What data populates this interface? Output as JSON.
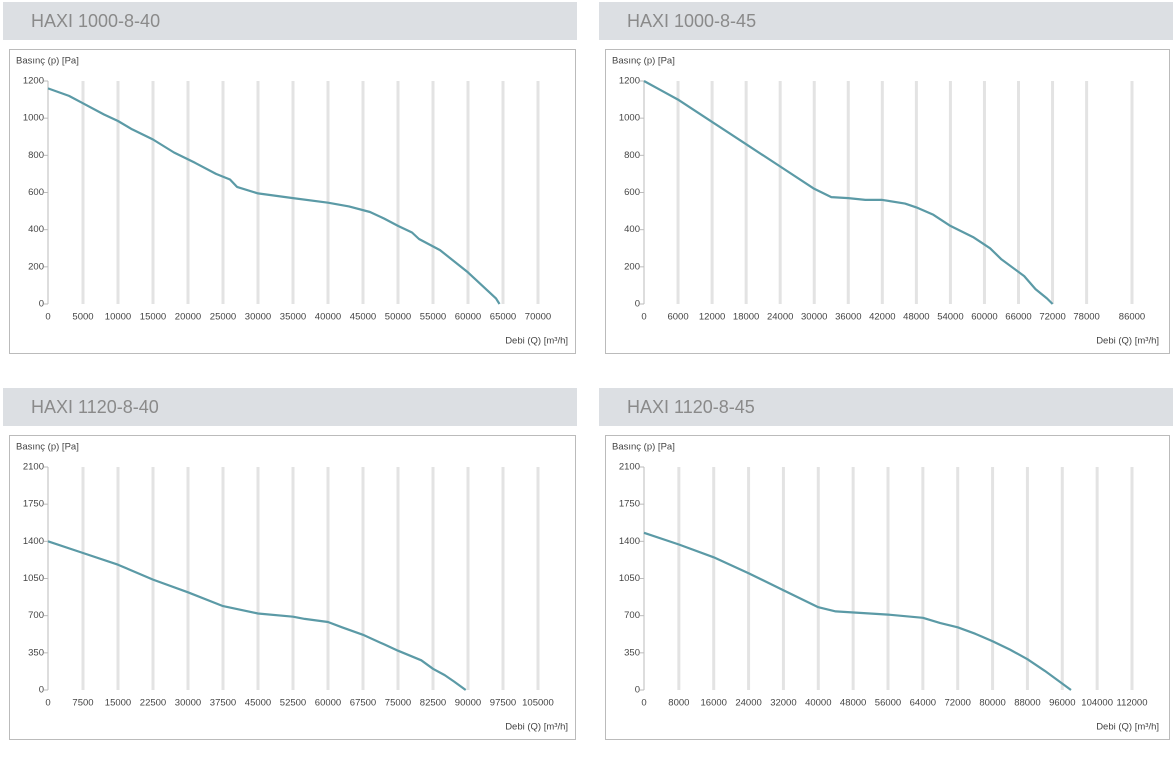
{
  "chart_data": [
    {
      "type": "line",
      "title": "HAXI 1000-8-40",
      "y_label": "Basınç (p) [Pa]",
      "x_label": "Debi (Q) [m³/h]",
      "color": "#5b9aa6",
      "x": [
        0,
        3000,
        5000,
        8000,
        10000,
        12000,
        15000,
        18000,
        21000,
        24000,
        26000,
        27000,
        30000,
        35000,
        40000,
        43000,
        46000,
        48000,
        50000,
        52000,
        53000,
        56000,
        60000,
        62000,
        64000,
        64500
      ],
      "values": [
        1160,
        1120,
        1080,
        1020,
        985,
        940,
        885,
        815,
        760,
        700,
        670,
        630,
        595,
        570,
        545,
        525,
        495,
        460,
        420,
        385,
        350,
        290,
        170,
        100,
        30,
        0
      ],
      "xlim": [
        0,
        70000
      ],
      "ylim": [
        0,
        1200
      ],
      "xticks": [
        0,
        5000,
        10000,
        15000,
        20000,
        25000,
        30000,
        35000,
        40000,
        45000,
        50000,
        55000,
        60000,
        65000,
        70000
      ],
      "yticks": [
        0,
        200,
        400,
        600,
        800,
        1000,
        1200
      ],
      "grid": true
    },
    {
      "type": "line",
      "title": "HAXI 1000-8-45",
      "y_label": "Basınç (p) [Pa]",
      "x_label": "Debi (Q) [m³/h]",
      "color": "#5b9aa6",
      "x": [
        0,
        3000,
        6000,
        12000,
        18000,
        24000,
        30000,
        33000,
        36000,
        39000,
        42000,
        46000,
        48000,
        51000,
        54000,
        58000,
        61000,
        63000,
        67000,
        69000,
        71000,
        72000
      ],
      "values": [
        1200,
        1150,
        1100,
        980,
        860,
        740,
        620,
        575,
        570,
        560,
        560,
        540,
        520,
        480,
        420,
        360,
        300,
        240,
        150,
        80,
        30,
        0
      ],
      "xlim": [
        0,
        86000
      ],
      "ylim": [
        0,
        1200
      ],
      "xticks": [
        0,
        6000,
        12000,
        18000,
        24000,
        30000,
        36000,
        42000,
        48000,
        54000,
        60000,
        66000,
        72000,
        78000,
        86000
      ],
      "yticks": [
        0,
        200,
        400,
        600,
        800,
        1000,
        1200
      ],
      "grid": true
    },
    {
      "type": "line",
      "title": "HAXI 1120-8-40",
      "y_label": "Basınç (p) [Pa]",
      "x_label": "Debi (Q) [m³/h]",
      "color": "#5b9aa6",
      "x": [
        0,
        7500,
        15000,
        22500,
        30000,
        37500,
        45000,
        52500,
        55000,
        60000,
        63000,
        67500,
        72000,
        75000,
        80000,
        82500,
        85000,
        87000,
        89500
      ],
      "values": [
        1400,
        1290,
        1180,
        1040,
        920,
        790,
        720,
        690,
        670,
        640,
        590,
        520,
        430,
        370,
        280,
        200,
        140,
        80,
        0
      ],
      "xlim": [
        0,
        105000
      ],
      "ylim": [
        0,
        2100
      ],
      "xticks": [
        0,
        7500,
        15000,
        22500,
        30000,
        37500,
        45000,
        52500,
        60000,
        67500,
        75000,
        82500,
        90000,
        97500,
        105000
      ],
      "yticks": [
        0,
        350,
        700,
        1050,
        1400,
        1750,
        2100
      ],
      "grid": true
    },
    {
      "type": "line",
      "title": "HAXI 1120-8-45",
      "y_label": "Basınç (p) [Pa]",
      "x_label": "Debi (Q) [m³/h]",
      "color": "#5b9aa6",
      "x": [
        0,
        8000,
        16000,
        24000,
        32000,
        40000,
        44000,
        56000,
        64000,
        68000,
        72000,
        76000,
        80000,
        84000,
        88000,
        92000,
        96000,
        98000
      ],
      "values": [
        1480,
        1370,
        1250,
        1100,
        940,
        780,
        740,
        710,
        680,
        630,
        590,
        530,
        460,
        380,
        290,
        180,
        60,
        0
      ],
      "xlim": [
        0,
        112000
      ],
      "ylim": [
        0,
        2100
      ],
      "xticks": [
        0,
        8000,
        16000,
        24000,
        32000,
        40000,
        48000,
        56000,
        64000,
        72000,
        80000,
        88000,
        96000,
        104000,
        112000
      ],
      "yticks": [
        0,
        350,
        700,
        1050,
        1400,
        1750,
        2100
      ],
      "grid": true
    }
  ]
}
